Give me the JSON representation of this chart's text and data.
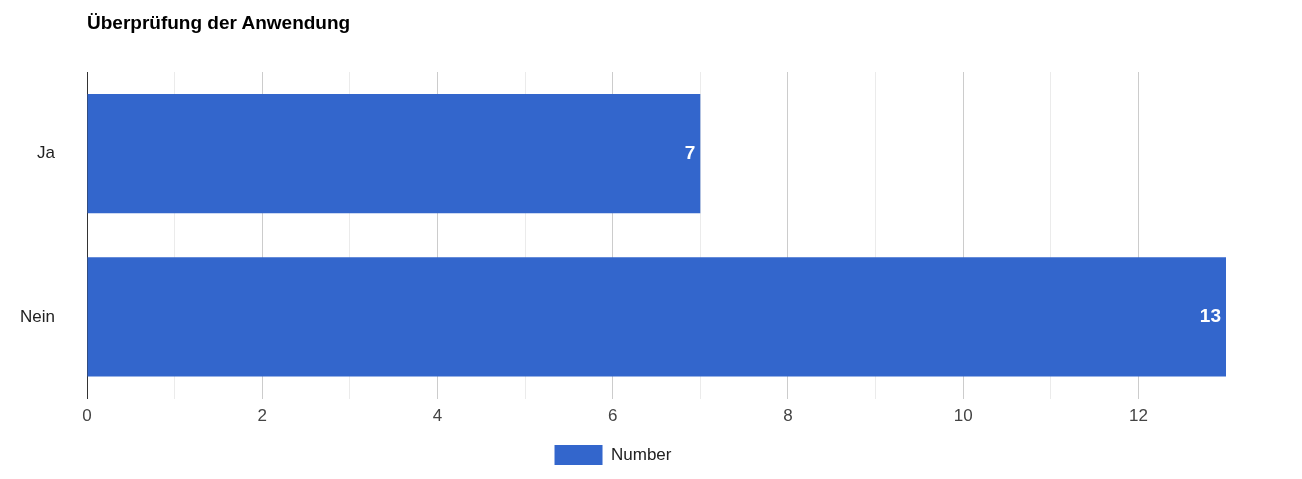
{
  "chart_data": {
    "type": "bar",
    "orientation": "horizontal",
    "title": "Überprüfung der Anwendung",
    "categories": [
      "Ja",
      "Nein"
    ],
    "series": [
      {
        "name": "Number",
        "color": "#3366cc",
        "values": [
          7,
          13
        ]
      }
    ],
    "xlim": [
      0,
      13
    ],
    "xticks": [
      0,
      {
        "value": 1,
        "label": null
      },
      2,
      {
        "value": 3,
        "label": null
      },
      4,
      {
        "value": 5,
        "label": null
      },
      6,
      {
        "value": 7,
        "label": null
      },
      8,
      {
        "value": 9,
        "label": null
      },
      10,
      {
        "value": 11,
        "label": null
      },
      12
    ],
    "grid": "x",
    "legend": "bottom",
    "data_labels": true
  }
}
